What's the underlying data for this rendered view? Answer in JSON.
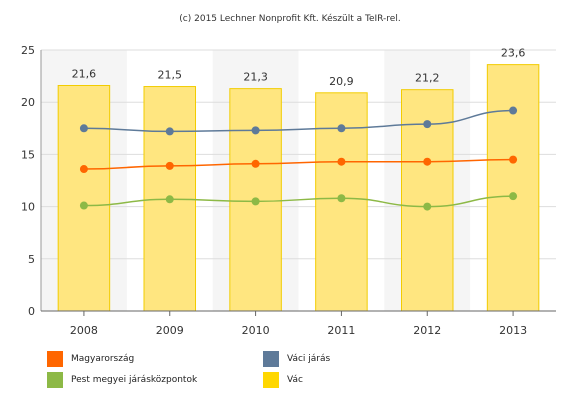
{
  "credit": "(c) 2015 Lechner Nonprofit Kft. Készült a TeIR-rel.",
  "colors": {
    "bar_fill": "#FFE680",
    "bar_stroke": "#F2CC00",
    "plot_bg_alt": "#F5F5F5",
    "grid": "#DDDDDD"
  },
  "chart_data": {
    "type": "bar",
    "categories": [
      "2008",
      "2009",
      "2010",
      "2011",
      "2012",
      "2013"
    ],
    "ylim": [
      0,
      25
    ],
    "yticks": [
      0,
      5,
      10,
      15,
      20,
      25
    ],
    "grid": true,
    "legend_placement": "bottom",
    "bar_series": {
      "name": "Vác",
      "color": "#FFD700",
      "values": [
        21.6,
        21.5,
        21.3,
        20.9,
        21.2,
        23.6
      ],
      "labels": [
        "21,6",
        "21,5",
        "21,3",
        "20,9",
        "21,2",
        "23,6"
      ]
    },
    "line_series": [
      {
        "name": "Magyarország",
        "color": "#FF6600",
        "values": [
          13.6,
          13.9,
          14.1,
          14.3,
          14.3,
          14.5
        ]
      },
      {
        "name": "Váci járás",
        "color": "#5E7A99",
        "values": [
          17.5,
          17.2,
          17.3,
          17.5,
          17.9,
          19.2
        ]
      },
      {
        "name": "Pest megyei járásközpontok",
        "color": "#8DB946",
        "values": [
          10.1,
          10.7,
          10.5,
          10.8,
          10.0,
          11.0
        ]
      }
    ]
  },
  "legend": [
    {
      "label": "Magyarország",
      "color": "#FF6600"
    },
    {
      "label": "Váci járás",
      "color": "#5E7A99"
    },
    {
      "label": "Pest megyei járásközpontok",
      "color": "#8DB946"
    },
    {
      "label": "Vác",
      "color": "#FFD700"
    }
  ]
}
